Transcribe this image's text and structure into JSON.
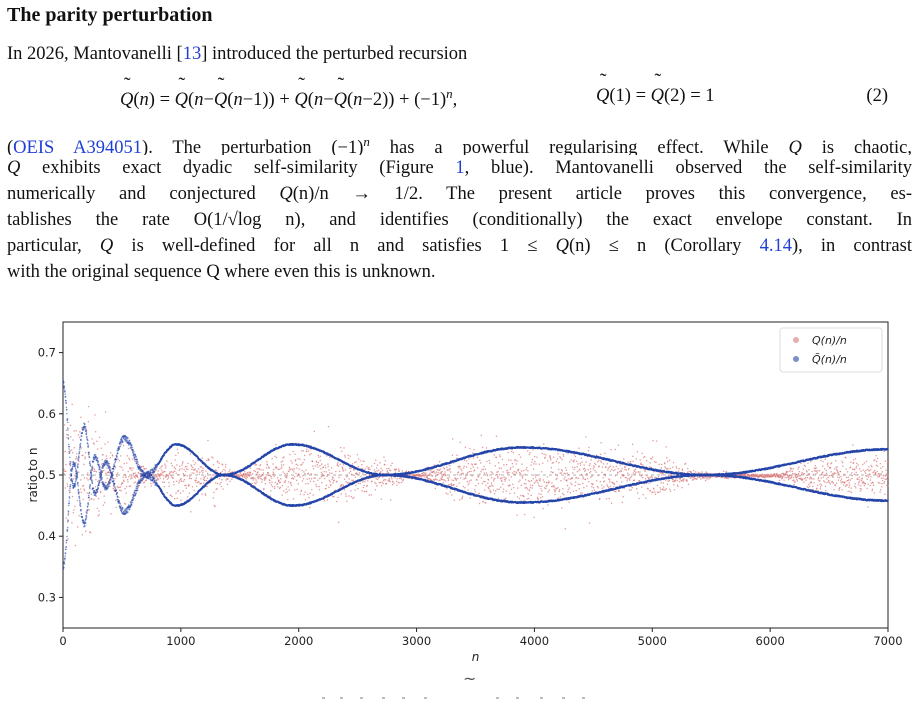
{
  "section": {
    "heading": "The parity perturbation"
  },
  "intro": {
    "before_ref": "In 2026, Mantovanelli [",
    "ref": "13",
    "after_ref": "] introduced the perturbed recursion"
  },
  "equation": {
    "number": "(2)"
  },
  "body": {
    "oeis": "OEIS A394051",
    "line1_a": "). The perturbation (−1)",
    "line1_b": " has a powerful regularising effect. While ",
    "line1_c": " is chaotic,",
    "line2_a": " exhibits exact dyadic self-similarity (Figure ",
    "figure_ref": "1",
    "line2_b": ", blue). Mantovanelli observed the self-similarity",
    "line3_a": "numerically and conjectured ",
    "line3_b": "(n)/n → 1/2. The present article proves this convergence, es-",
    "line4": "tablishes the rate O(1/√log n), and identifies (conditionally) the exact envelope constant. In",
    "line5_a": "particular, ",
    "line5_b": " is well-defined for all n and satisfies 1 ≤ ",
    "line5_c": "(n) ≤ n (Corollary ",
    "corollary_ref": "4.14",
    "line5_d": "), in contrast",
    "line6": "with the original sequence Q where even this is unknown."
  },
  "chart_data": {
    "type": "scatter",
    "xlabel": "n",
    "ylabel": "ratio to n",
    "xlim": [
      0,
      7000
    ],
    "ylim": [
      0.25,
      0.75
    ],
    "xticks": [
      0,
      1000,
      2000,
      3000,
      4000,
      5000,
      6000,
      7000
    ],
    "yticks": [
      0.3,
      0.4,
      0.5,
      0.6,
      0.7
    ],
    "reference_line": 0.5,
    "legend_position": "top-right",
    "grid": false,
    "series": [
      {
        "name": "Q(n)/n",
        "color": "#d9787a",
        "kind": "chaotic scatter around 0.5",
        "spread_by_n": [
          [
            0,
            0.14
          ],
          [
            500,
            0.06
          ],
          [
            750,
            0.012
          ],
          [
            1000,
            0.05
          ],
          [
            1250,
            0.04
          ],
          [
            1500,
            0.006
          ],
          [
            1750,
            0.04
          ],
          [
            2200,
            0.06
          ],
          [
            2700,
            0.03
          ],
          [
            3000,
            0.006
          ],
          [
            3400,
            0.05
          ],
          [
            4300,
            0.06
          ],
          [
            5000,
            0.04
          ],
          [
            5500,
            0.006
          ],
          [
            6000,
            0.004
          ],
          [
            6500,
            0.04
          ],
          [
            7000,
            0.04
          ]
        ]
      },
      {
        "name": "Q̃(n)/n",
        "color": "#2545a8",
        "kind": "dyadic envelope",
        "envelope_nodes": [
          [
            0,
            0.65
          ],
          [
            90,
            0.48
          ],
          [
            180,
            0.58
          ],
          [
            270,
            0.47
          ],
          [
            360,
            0.52
          ],
          [
            520,
            0.44
          ],
          [
            700,
            0.5
          ],
          [
            960,
            0.55
          ],
          [
            1365,
            0.5
          ],
          [
            1950,
            0.45
          ],
          [
            2730,
            0.5
          ],
          [
            3900,
            0.455
          ],
          [
            5460,
            0.5
          ],
          [
            7000,
            0.458
          ]
        ]
      }
    ]
  }
}
